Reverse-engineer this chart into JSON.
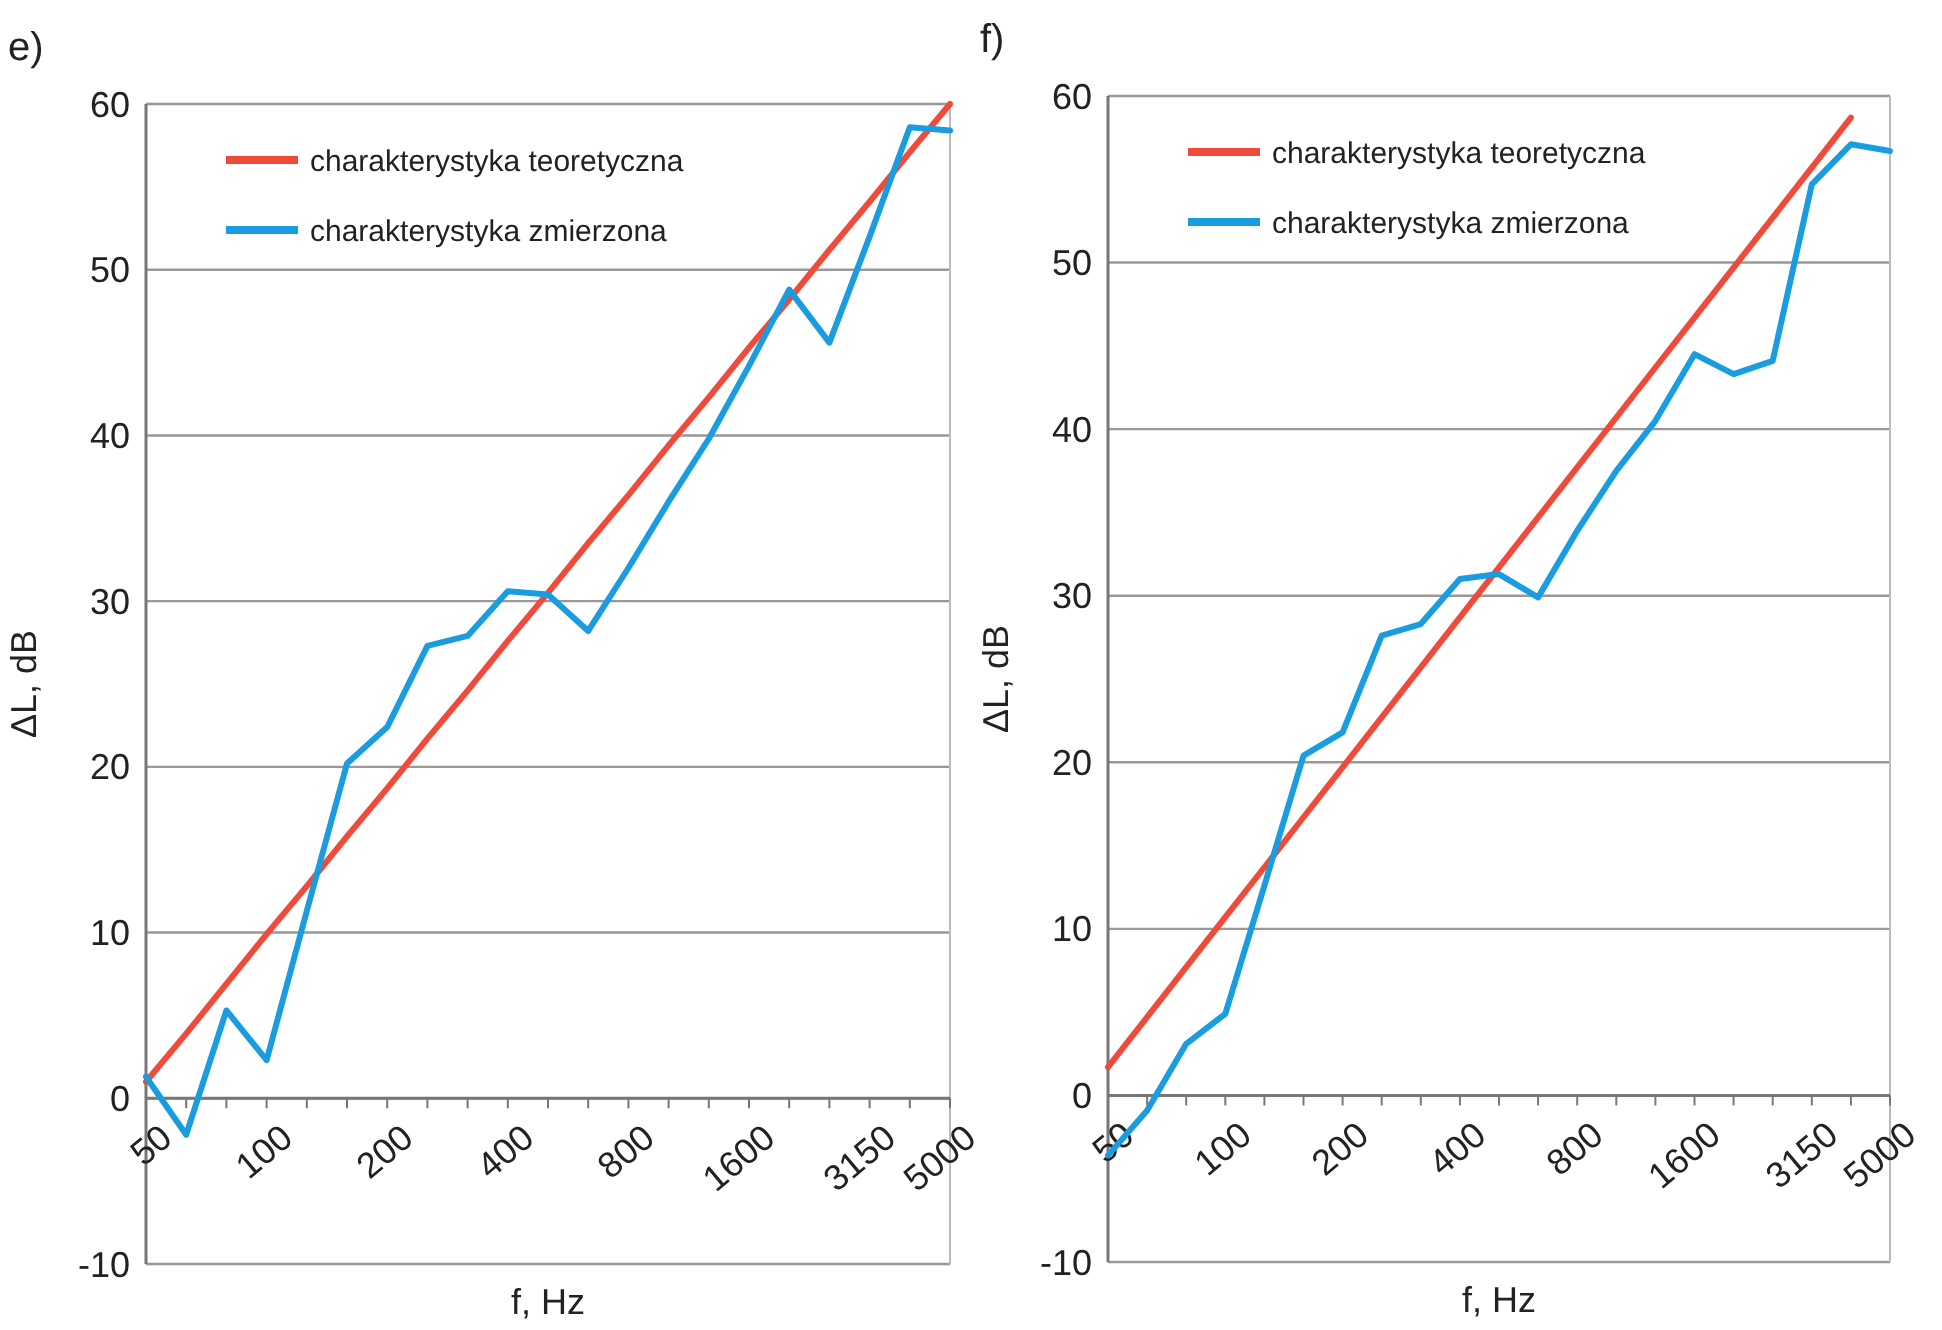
{
  "chart_data": [
    {
      "type": "line",
      "title": "e)",
      "xlabel": "f, Hz",
      "ylabel": "ΔL, dB",
      "categories": [
        "50",
        null,
        null,
        "100",
        null,
        null,
        "200",
        null,
        null,
        "400",
        null,
        null,
        "800",
        null,
        null,
        "1600",
        null,
        null,
        "3150",
        null,
        "5000"
      ],
      "ylim": [
        -10,
        60
      ],
      "yticks": [
        -10,
        0,
        10,
        20,
        30,
        40,
        50,
        60
      ],
      "grid": "y",
      "legend": "top left",
      "marker": "none",
      "line_style": "solid",
      "series": [
        {
          "name": "charakterystyka teoretyczna",
          "color": "#f04a3a",
          "values": [
            1,
            3.9,
            6.9,
            9.9,
            12.8,
            15.8,
            18.7,
            21.7,
            24.6,
            27.6,
            30.5,
            33.5,
            36.4,
            39.4,
            42.3,
            45.3,
            48.2,
            51.2,
            54.1,
            57.1,
            60
          ]
        },
        {
          "name": "charakterystyka zmierzona",
          "color": "#1a9ce0",
          "values": [
            1.3,
            -2.2,
            5.3,
            2.3,
            11.3,
            20.2,
            22.4,
            27.3,
            27.9,
            30.6,
            30.4,
            28.2,
            32,
            36,
            39.8,
            44.2,
            48.8,
            45.6,
            52,
            58.6,
            58.4
          ]
        }
      ]
    },
    {
      "type": "line",
      "title": "f)",
      "xlabel": "f, Hz",
      "ylabel": "ΔL, dB",
      "categories": [
        "50",
        null,
        null,
        "100",
        null,
        null,
        "200",
        null,
        null,
        "400",
        null,
        null,
        "800",
        null,
        null,
        "1600",
        null,
        null,
        "3150",
        null,
        "5000"
      ],
      "ylim": [
        -10,
        60
      ],
      "yticks": [
        -10,
        0,
        10,
        20,
        30,
        40,
        50,
        60
      ],
      "grid": "y",
      "legend": "top left",
      "marker": "none",
      "line_style": "solid",
      "series": [
        {
          "name": "charakterystyka teoretyczna",
          "color": "#f04a3a",
          "values": [
            1.7,
            4.7,
            7.7,
            10.7,
            13.7,
            16.7,
            19.7,
            22.7,
            25.7,
            28.7,
            31.7,
            34.7,
            37.7,
            40.7,
            43.7,
            46.7,
            49.7,
            52.7,
            55.7,
            58.7,
            null
          ]
        },
        {
          "name": "charakterystyka zmierzona",
          "color": "#1a9ce0",
          "values": [
            -3.6,
            -0.9,
            3.1,
            4.9,
            12.6,
            20.4,
            21.8,
            27.6,
            28.3,
            31,
            31.3,
            29.9,
            33.9,
            37.5,
            40.5,
            44.5,
            43.3,
            44.1,
            54.7,
            57.1,
            56.7
          ]
        }
      ]
    }
  ]
}
